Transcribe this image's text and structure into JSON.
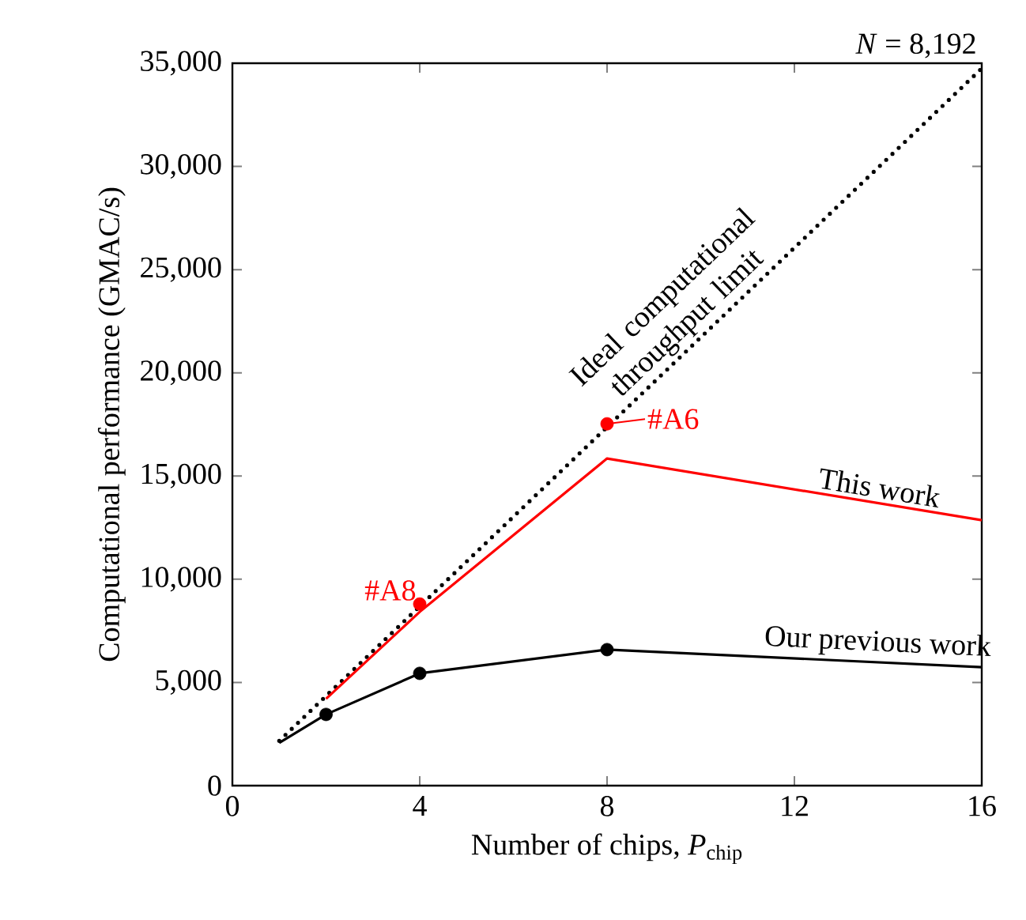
{
  "chart_data": {
    "type": "line",
    "xlabel": "Number of chips, *P*$_{chip}$",
    "ylabel": "Computational performance (GMAC/s)",
    "xlim": [
      0,
      16
    ],
    "ylim": [
      0,
      35000
    ],
    "xticks": [
      0,
      4,
      8,
      12,
      16
    ],
    "yticks": [
      0,
      {
        "value": 5000,
        "label": "5,000"
      },
      {
        "value": 10000,
        "label": "10,000"
      },
      {
        "value": 15000,
        "label": "15,000"
      },
      {
        "value": 20000,
        "label": "20,000"
      },
      {
        "value": 25000,
        "label": "25,000"
      },
      {
        "value": 30000,
        "label": "30,000"
      },
      {
        "value": 35000,
        "label": "35,000"
      }
    ],
    "series": [
      {
        "name": "Ideal computational throughput limit",
        "color": "#000000",
        "line_style": "dotted",
        "x": [
          1,
          16
        ],
        "values": [
          2170,
          34750
        ]
      },
      {
        "name": "This work",
        "color": "#ff0000",
        "x": [
          2,
          4,
          8,
          16
        ],
        "values": [
          4210,
          8420,
          15850,
          12860
        ]
      },
      {
        "name": "Our previous work",
        "color": "#000000",
        "x": [
          1,
          2,
          4,
          8,
          16
        ],
        "values": [
          2070,
          3450,
          5440,
          6590,
          5740
        ]
      },
      {
        "type": "scatter",
        "color": "#ff0000",
        "marker": "circle",
        "x": [
          4,
          8
        ],
        "values": [
          8800,
          17530
        ]
      },
      {
        "type": "scatter",
        "color": "#000000",
        "marker": "circle",
        "x": [
          2,
          4,
          8
        ],
        "values": [
          3450,
          5440,
          6590
        ]
      }
    ],
    "annotations": [
      {
        "text": "#A8",
        "x": 4,
        "y": 8800
      },
      {
        "text": "#A6",
        "x": 8,
        "y": 17530
      },
      "*N* = 8,192"
    ]
  }
}
